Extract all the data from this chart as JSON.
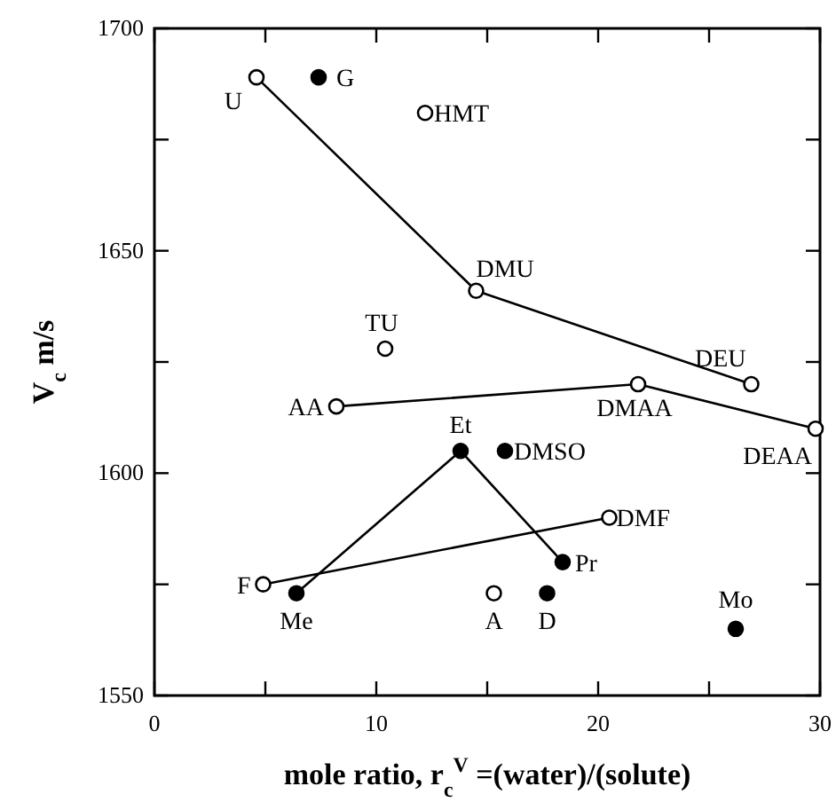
{
  "chart_data": {
    "type": "line",
    "xlabel": "mole ratio, r$_{c}$$^{V}$ =(water)/(solute)",
    "ylabel": "V$_{c}$ m/s",
    "xlim": [
      0,
      30
    ],
    "xticks": [
      0,
      {
        "value": 5,
        "label": null
      },
      10,
      {
        "value": 15,
        "label": null
      },
      20,
      {
        "value": 25,
        "label": null
      },
      30
    ],
    "ylim": [
      1550,
      1700
    ],
    "yticks": [
      1550,
      {
        "value": 1575,
        "label": null
      },
      1600,
      {
        "value": 1625,
        "label": null
      },
      1650,
      {
        "value": 1675,
        "label": null
      },
      1700
    ],
    "grid": false,
    "marker": "circle",
    "line_style": "solid",
    "series": [
      {
        "color": "#000000",
        "x": [
          4.6,
          14.5,
          26.9
        ],
        "values": [
          1689,
          1641,
          1620
        ],
        "colors": [
          "#ffffff",
          "#ffffff",
          "#ffffff"
        ]
      },
      {
        "color": "#000000",
        "x": [
          8.2,
          21.8,
          29.8
        ],
        "values": [
          1615,
          1620,
          1610
        ],
        "colors": [
          "#ffffff",
          "#ffffff",
          "#ffffff"
        ]
      },
      {
        "color": "#000000",
        "x": [
          4.9,
          20.5
        ],
        "values": [
          1575,
          1590
        ],
        "colors": [
          "#ffffff",
          "#ffffff"
        ]
      },
      {
        "color": "#000000",
        "x": [
          6.4,
          13.8,
          18.4
        ],
        "values": [
          1573,
          1605,
          1580
        ],
        "colors": [
          "#000000",
          "#000000",
          "#000000"
        ]
      },
      {
        "type": "scatter",
        "color": "#000000",
        "x": [
          12.2,
          10.4,
          15.3
        ],
        "values": [
          1681,
          1628,
          1573
        ],
        "colors": [
          "#ffffff",
          "#ffffff",
          "#ffffff"
        ]
      },
      {
        "type": "scatter",
        "color": "#000000",
        "x": [
          7.4,
          15.8,
          17.7,
          26.2
        ],
        "values": [
          1689,
          1605,
          1573,
          1565
        ],
        "colors": [
          "#000000",
          "#000000",
          "#000000",
          "#000000"
        ]
      }
    ],
    "annotations": [
      {
        "text": "U",
        "x": 4.6,
        "y": 1689
      },
      {
        "text": "G",
        "x": 7.4,
        "y": 1689
      },
      {
        "text": "HMT",
        "x": 12.2,
        "y": 1681
      },
      {
        "text": "DMU",
        "x": 14.5,
        "y": 1641
      },
      {
        "text": "DEU",
        "x": 26.9,
        "y": 1620
      },
      {
        "text": "DMAA",
        "x": 21.8,
        "y": 1620
      },
      {
        "text": "DEAA",
        "x": 29.8,
        "y": 1610
      },
      {
        "text": "TU",
        "x": 10.4,
        "y": 1628
      },
      {
        "text": "AA",
        "x": 8.2,
        "y": 1615
      },
      {
        "text": "Et",
        "x": 13.8,
        "y": 1605
      },
      {
        "text": "DMSO",
        "x": 15.8,
        "y": 1605
      },
      {
        "text": "DMF",
        "x": 20.5,
        "y": 1590
      },
      {
        "text": "F",
        "x": 4.9,
        "y": 1575
      },
      {
        "text": "Me",
        "x": 6.4,
        "y": 1573
      },
      {
        "text": "Pr",
        "x": 18.4,
        "y": 1580
      },
      {
        "text": "A",
        "x": 15.3,
        "y": 1573
      },
      {
        "text": "D",
        "x": 17.7,
        "y": 1573
      },
      {
        "text": "Mo",
        "x": 26.2,
        "y": 1565
      }
    ]
  }
}
